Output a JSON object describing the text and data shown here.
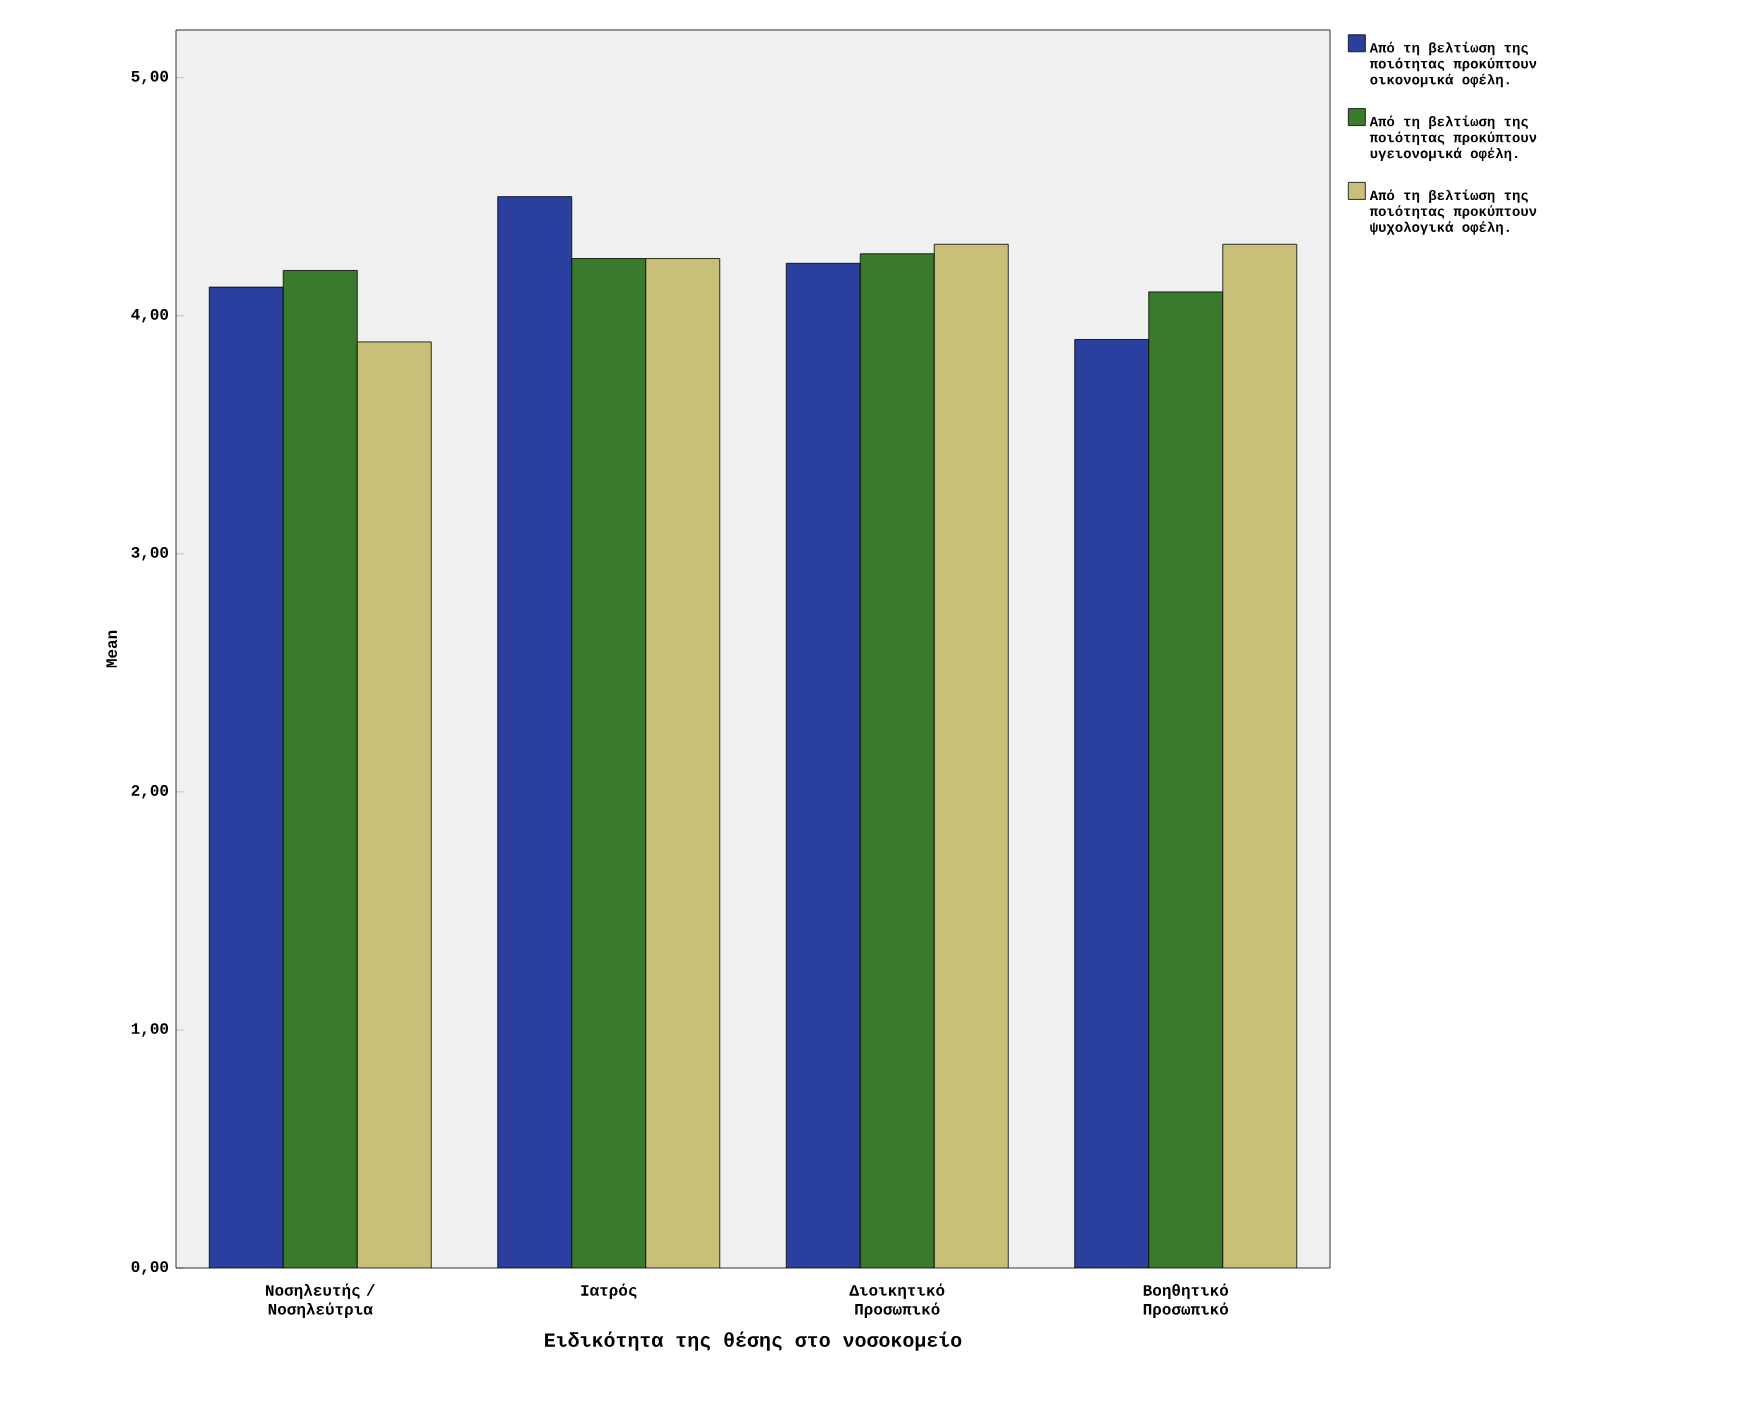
{
  "chart_data": {
    "type": "bar",
    "xlabel": "Ειδικότητα της θέσης στο νοσοκομείο",
    "ylabel": "Mean",
    "categories": [
      "Νοσηλευτής / Νοσηλεύτρια",
      "Ιατρός",
      "Διοικητικό Προσωπικό",
      "Βοηθητικό Προσωπικό"
    ],
    "series": [
      {
        "name": "Από τη βελτίωση της ποιότητας προκύπτουν οικονομικά οφέλη.",
        "color": "#2a3f9e",
        "values": [
          4.12,
          4.5,
          4.22,
          3.9
        ]
      },
      {
        "name": "Από τη βελτίωση της ποιότητας προκύπτουν υγειονομικά οφέλη.",
        "color": "#3a7a2c",
        "values": [
          4.19,
          4.24,
          4.26,
          4.1
        ]
      },
      {
        "name": "Από τη βελτίωση της ποιότητας προκύπτουν ψυχολογικά οφέλη.",
        "color": "#c8bf78",
        "values": [
          3.89,
          4.24,
          4.3,
          4.3
        ]
      }
    ],
    "ylim": [
      0,
      5.2
    ],
    "yticks": [
      {
        "value": 0,
        "label": "0,00"
      },
      {
        "value": 1,
        "label": "1,00"
      },
      {
        "value": 2,
        "label": "2,00"
      },
      {
        "value": 3,
        "label": "3,00"
      },
      {
        "value": 4,
        "label": "4,00"
      },
      {
        "value": 5,
        "label": "5,00"
      }
    ],
    "legend": "top right"
  }
}
